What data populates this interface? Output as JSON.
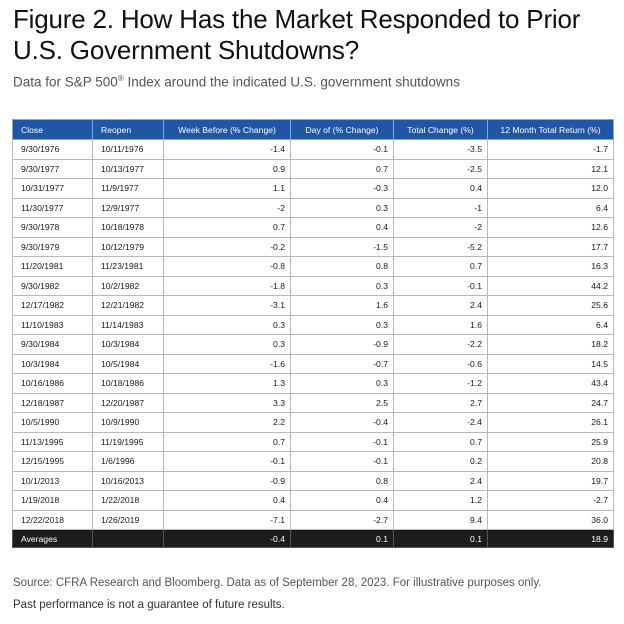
{
  "title": "Figure 2. How Has the Market Responded to Prior U.S. Government Shutdowns?",
  "subtitle_prefix": "Data for S&P 500",
  "subtitle_mark": "®",
  "subtitle_suffix": " Index around the indicated U.S. government shutdowns",
  "table": {
    "headers": [
      "Close",
      "Reopen",
      "Week Before (% Change)",
      "Day of (% Change)",
      "Total Change (%)",
      "12 Month Total Return (%)"
    ],
    "rows": [
      [
        "9/30/1976",
        "10/11/1976",
        "-1.4",
        "-0.1",
        "-3.5",
        "-1.7"
      ],
      [
        "9/30/1977",
        "10/13/1977",
        "0.9",
        "0.7",
        "-2.5",
        "12.1"
      ],
      [
        "10/31/1977",
        "11/9/1977",
        "1.1",
        "-0.3",
        "0.4",
        "12.0"
      ],
      [
        "11/30/1977",
        "12/9/1977",
        "-2",
        "0.3",
        "-1",
        "6.4"
      ],
      [
        "9/30/1978",
        "10/18/1978",
        "0.7",
        "0.4",
        "-2",
        "12.6"
      ],
      [
        "9/30/1979",
        "10/12/1979",
        "-0.2",
        "-1.5",
        "-5.2",
        "17.7"
      ],
      [
        "11/20/1981",
        "11/23/1981",
        "-0.8",
        "0.8",
        "0.7",
        "16.3"
      ],
      [
        "9/30/1982",
        "10/2/1982",
        "-1.8",
        "0.3",
        "-0.1",
        "44.2"
      ],
      [
        "12/17/1982",
        "12/21/1982",
        "-3.1",
        "1.6",
        "2.4",
        "25.6"
      ],
      [
        "11/10/1983",
        "11/14/1983",
        "0.3",
        "0.3",
        "1.6",
        "6.4"
      ],
      [
        "9/30/1984",
        "10/3/1984",
        "0.3",
        "-0.9",
        "-2.2",
        "18.2"
      ],
      [
        "10/3/1984",
        "10/5/1984",
        "-1.6",
        "-0.7",
        "-0.6",
        "14.5"
      ],
      [
        "10/16/1986",
        "10/18/1986",
        "1.3",
        "0.3",
        "-1.2",
        "43.4"
      ],
      [
        "12/18/1987",
        "12/20/1987",
        "3.3",
        "2.5",
        "2.7",
        "24.7"
      ],
      [
        "10/5/1990",
        "10/9/1990",
        "2.2",
        "-0.4",
        "-2.4",
        "26.1"
      ],
      [
        "11/13/1995",
        "11/19/1995",
        "0.7",
        "-0.1",
        "0.7",
        "25.9"
      ],
      [
        "12/15/1995",
        "1/6/1996",
        "-0.1",
        "-0.1",
        "0.2",
        "20.8"
      ],
      [
        "10/1/2013",
        "10/16/2013",
        "-0.9",
        "0.8",
        "2.4",
        "19.7"
      ],
      [
        "1/19/2018",
        "1/22/2018",
        "0.4",
        "0.4",
        "1.2",
        "-2.7"
      ],
      [
        "12/22/2018",
        "1/26/2019",
        "-7.1",
        "-2.7",
        "9.4",
        "36.0"
      ]
    ],
    "averages": [
      "Averages",
      "",
      "-0.4",
      "0.1",
      "0.1",
      "18.9"
    ]
  },
  "source": "Source: CFRA Research and Bloomberg. Data as of September 28, 2023. For illustrative purposes only.",
  "disclaimer": "Past performance is not a guarantee of future results.",
  "colors": {
    "header_bg": "#1f56a6",
    "footer_bg": "#1c1c1c"
  }
}
